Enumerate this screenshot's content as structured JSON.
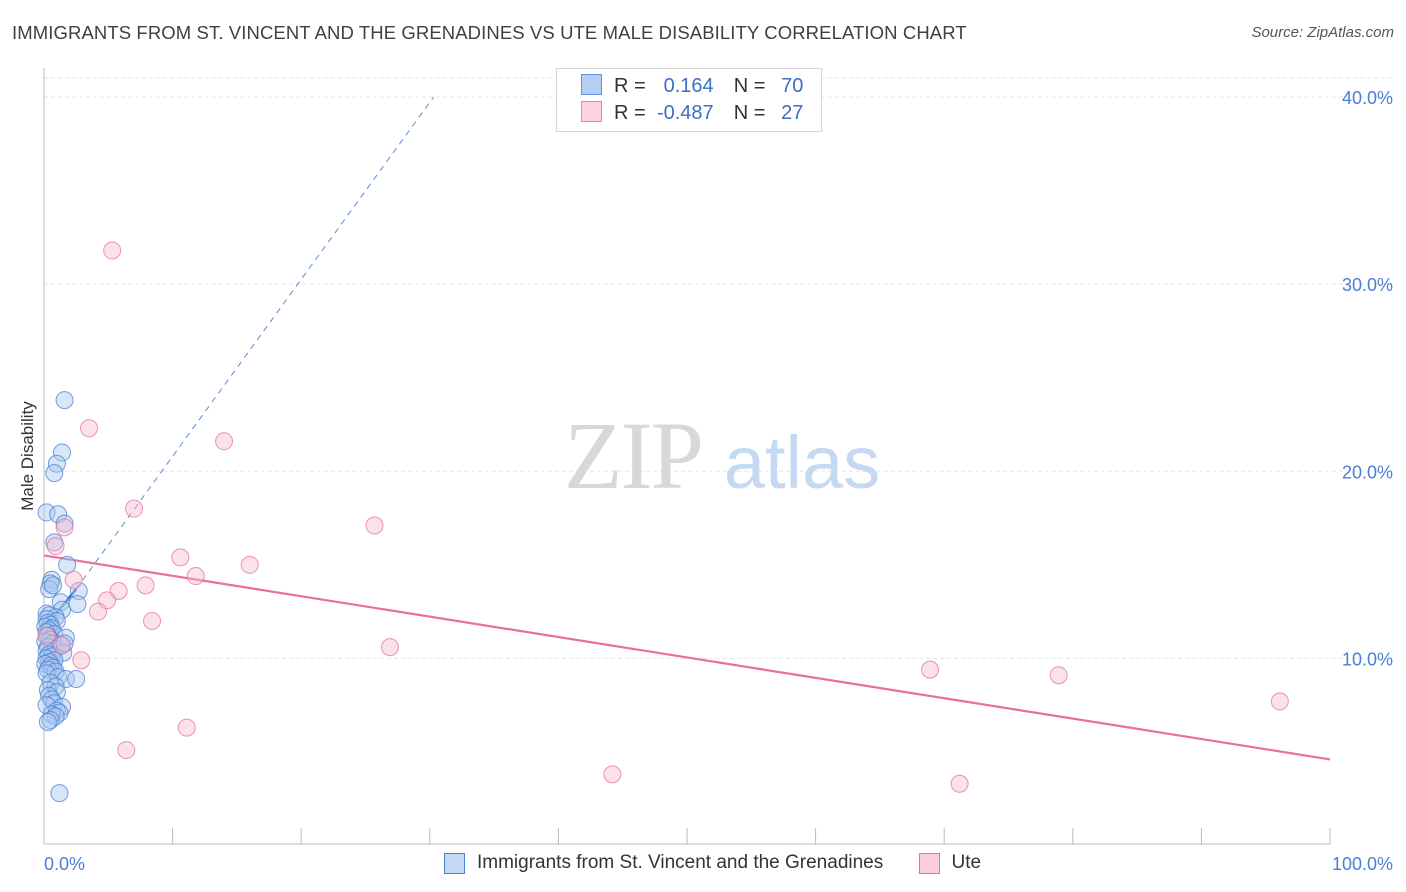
{
  "chart_data": {
    "type": "scatter",
    "title": "IMMIGRANTS FROM ST. VINCENT AND THE GRENADINES VS UTE MALE DISABILITY CORRELATION CHART",
    "source": "Source: ZipAtlas.com",
    "xlabel": "",
    "ylabel": "Male Disability",
    "xlim": [
      0,
      100
    ],
    "ylim": [
      0,
      41
    ],
    "x_tick_labels": [
      "0.0%",
      "100.0%"
    ],
    "y_ticks": [
      10,
      20,
      30,
      40
    ],
    "y_tick_labels": [
      "10.0%",
      "20.0%",
      "30.0%",
      "40.0%"
    ],
    "watermark": {
      "zip": "ZIP",
      "atlas": "atlas"
    },
    "legend": {
      "r_label": "R =",
      "n_label": "N =",
      "entries": [
        {
          "r": "0.164",
          "n": "70"
        },
        {
          "r": "-0.487",
          "n": "27"
        }
      ]
    },
    "series": [
      {
        "name": "Immigrants from St. Vincent and the Grenadines",
        "color": "#4a7fd4",
        "fill": "#a9c7f0",
        "points": [
          [
            1.6,
            23.8
          ],
          [
            1.4,
            21.0
          ],
          [
            1.0,
            20.4
          ],
          [
            0.8,
            19.9
          ],
          [
            0.2,
            17.8
          ],
          [
            1.1,
            17.7
          ],
          [
            1.6,
            17.2
          ],
          [
            0.8,
            16.2
          ],
          [
            1.8,
            15.0
          ],
          [
            0.6,
            14.2
          ],
          [
            0.5,
            14.0
          ],
          [
            0.4,
            13.7
          ],
          [
            2.7,
            13.6
          ],
          [
            1.3,
            13.0
          ],
          [
            2.6,
            12.9
          ],
          [
            1.4,
            12.6
          ],
          [
            0.2,
            12.4
          ],
          [
            0.4,
            12.3
          ],
          [
            0.9,
            12.2
          ],
          [
            0.2,
            12.1
          ],
          [
            1.0,
            12.0
          ],
          [
            0.3,
            11.9
          ],
          [
            0.5,
            11.8
          ],
          [
            0.1,
            11.7
          ],
          [
            0.6,
            11.6
          ],
          [
            0.4,
            11.5
          ],
          [
            0.2,
            11.4
          ],
          [
            0.8,
            11.3
          ],
          [
            0.3,
            11.2
          ],
          [
            1.7,
            11.1
          ],
          [
            0.5,
            11.0
          ],
          [
            0.1,
            10.9
          ],
          [
            0.7,
            10.8
          ],
          [
            1.3,
            10.7
          ],
          [
            0.3,
            10.6
          ],
          [
            0.9,
            10.5
          ],
          [
            0.2,
            10.4
          ],
          [
            1.5,
            10.3
          ],
          [
            0.4,
            10.2
          ],
          [
            0.6,
            10.1
          ],
          [
            0.2,
            10.0
          ],
          [
            0.8,
            9.9
          ],
          [
            0.4,
            9.8
          ],
          [
            0.1,
            9.7
          ],
          [
            0.5,
            9.6
          ],
          [
            0.7,
            9.5
          ],
          [
            0.3,
            9.4
          ],
          [
            0.9,
            9.3
          ],
          [
            0.2,
            9.2
          ],
          [
            1.1,
            9.0
          ],
          [
            1.7,
            8.9
          ],
          [
            2.5,
            8.9
          ],
          [
            0.5,
            8.7
          ],
          [
            0.9,
            8.5
          ],
          [
            0.3,
            8.3
          ],
          [
            1.0,
            8.2
          ],
          [
            0.4,
            8.0
          ],
          [
            0.6,
            7.8
          ],
          [
            0.8,
            7.6
          ],
          [
            0.2,
            7.5
          ],
          [
            1.4,
            7.4
          ],
          [
            1.0,
            7.2
          ],
          [
            1.2,
            7.1
          ],
          [
            0.6,
            7.0
          ],
          [
            0.9,
            6.9
          ],
          [
            0.5,
            6.7
          ],
          [
            0.3,
            6.6
          ],
          [
            1.6,
            10.8
          ],
          [
            0.7,
            13.9
          ],
          [
            1.2,
            2.8
          ]
        ],
        "trend": {
          "x1": 0,
          "y1": 11.6,
          "x2": 2.5,
          "y2": 13.7,
          "ext_x2": 30.3,
          "ext_y2": 40.0
        }
      },
      {
        "name": "Ute",
        "color": "#e8709a",
        "fill": "#f5bdd0",
        "points": [
          [
            5.3,
            31.8
          ],
          [
            3.5,
            22.3
          ],
          [
            14.0,
            21.6
          ],
          [
            7.0,
            18.0
          ],
          [
            1.6,
            17.0
          ],
          [
            25.7,
            17.1
          ],
          [
            0.9,
            16.0
          ],
          [
            10.6,
            15.4
          ],
          [
            16.0,
            15.0
          ],
          [
            11.8,
            14.4
          ],
          [
            2.3,
            14.2
          ],
          [
            7.9,
            13.9
          ],
          [
            5.8,
            13.6
          ],
          [
            4.9,
            13.1
          ],
          [
            4.2,
            12.5
          ],
          [
            8.4,
            12.0
          ],
          [
            1.4,
            10.7
          ],
          [
            26.9,
            10.6
          ],
          [
            2.9,
            9.9
          ],
          [
            68.9,
            9.4
          ],
          [
            78.9,
            9.1
          ],
          [
            96.1,
            7.7
          ],
          [
            11.1,
            6.3
          ],
          [
            6.4,
            5.1
          ],
          [
            44.2,
            3.8
          ],
          [
            71.2,
            3.3
          ],
          [
            0.2,
            11.2
          ]
        ],
        "trend": {
          "x1": 0,
          "y1": 15.5,
          "x2": 100,
          "y2": 4.6
        }
      }
    ]
  }
}
